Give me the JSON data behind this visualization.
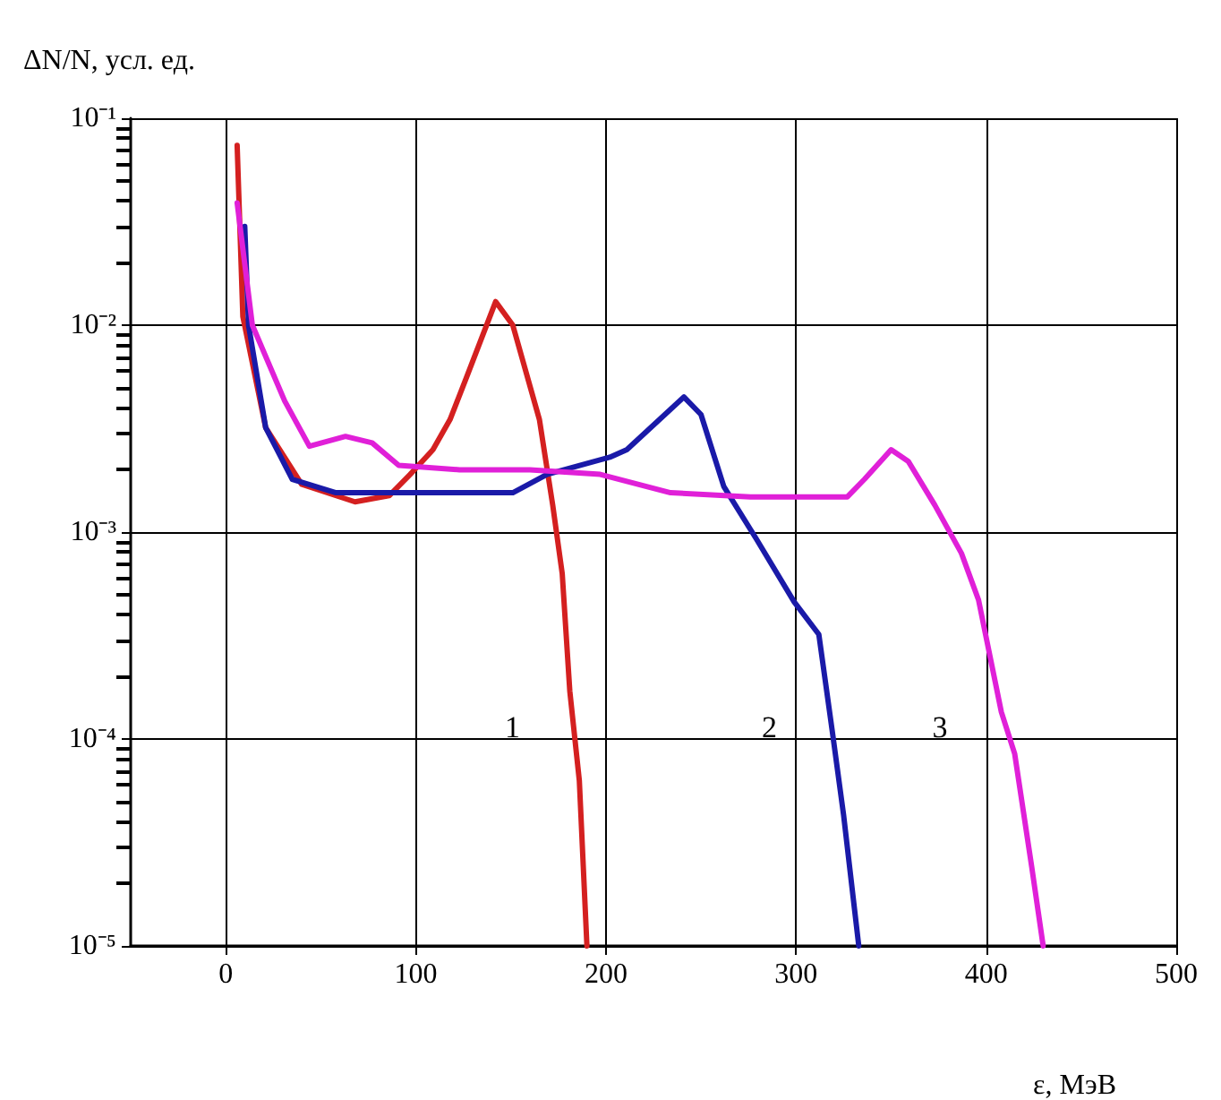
{
  "chart_data": {
    "type": "line",
    "xlabel": "ε, МэВ",
    "ylabel": "ΔN/N, усл. ед.",
    "log": "y",
    "grid": true,
    "marker": "none",
    "line_style": "solid",
    "xlim": [
      -50,
      500
    ],
    "xticks": [
      0,
      100,
      200,
      300,
      400,
      500
    ],
    "ylim": [
      1e-05,
      0.1
    ],
    "yticks": [
      {
        "value": 1e-05,
        "label": "10⁻⁵"
      },
      {
        "value": 0.0001,
        "label": "10⁻⁴"
      },
      {
        "value": 0.001,
        "label": "10⁻³"
      },
      {
        "value": 0.01,
        "label": "10⁻²"
      },
      {
        "value": 0.1,
        "label": "10⁻¹"
      }
    ],
    "series": [
      {
        "name": "1",
        "color": "#d42020",
        "x": [
          6,
          9,
          21,
          40,
          68,
          86,
          97,
          109,
          118,
          127,
          142,
          151,
          165,
          172,
          177,
          181,
          186,
          190
        ],
        "values": [
          0.074,
          0.011,
          0.0032,
          0.0017,
          0.0014,
          0.0015,
          0.0019,
          0.0025,
          0.0035,
          0.0057,
          0.013,
          0.01,
          0.0035,
          0.00135,
          0.00063,
          0.00017,
          6.3e-05,
          1e-05
        ]
      },
      {
        "name": "2",
        "color": "#1a1aa8",
        "x": [
          10,
          12,
          21,
          35,
          58,
          100,
          151,
          169,
          202,
          211,
          241,
          250,
          262,
          279,
          299,
          312,
          319,
          325,
          333
        ],
        "values": [
          0.03,
          0.01,
          0.0032,
          0.0018,
          0.00155,
          0.00155,
          0.00155,
          0.0019,
          0.0023,
          0.0025,
          0.0045,
          0.0037,
          0.00166,
          0.00093,
          0.00046,
          0.00032,
          0.00011,
          4.3e-05,
          1e-05
        ]
      },
      {
        "name": "3",
        "color": "#e020d8",
        "x": [
          6,
          14,
          31,
          44,
          63,
          77,
          91,
          123,
          160,
          197,
          234,
          276,
          327,
          336,
          350,
          359,
          373,
          387,
          396,
          408,
          415,
          424,
          430
        ],
        "values": [
          0.039,
          0.01,
          0.0043,
          0.0026,
          0.0029,
          0.0027,
          0.0021,
          0.002,
          0.002,
          0.0019,
          0.00155,
          0.00148,
          0.00148,
          0.0018,
          0.0025,
          0.0022,
          0.00135,
          0.00079,
          0.00047,
          0.000135,
          8.5e-05,
          2.4e-05,
          1e-05
        ]
      }
    ]
  }
}
